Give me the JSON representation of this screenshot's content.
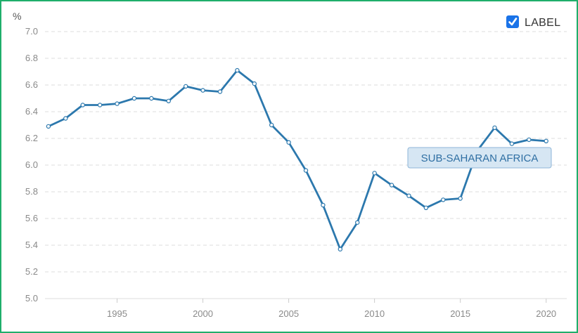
{
  "legend": {
    "checkbox_checked": true,
    "label": "LABEL"
  },
  "colors": {
    "line": "#2c78ad",
    "grid": "#dddddd",
    "frame": "#1fae6b",
    "checkbox": "#1a73e8",
    "series_label_bg": "#d6e6f3",
    "series_label_border": "#8fb6d8"
  },
  "chart_data": {
    "type": "line",
    "ylabel": "%",
    "xlabel": "",
    "title": "",
    "ylim": [
      5.0,
      7.0
    ],
    "xlim": [
      1990.8,
      2021.2
    ],
    "yticks": [
      "7.0",
      "6.8",
      "6.6",
      "6.4",
      "6.2",
      "6.0",
      "5.8",
      "5.6",
      "5.4",
      "5.2",
      "5.0"
    ],
    "xticks": [
      "1995",
      "2000",
      "2005",
      "2010",
      "2015",
      "2020"
    ],
    "grid": true,
    "legend_position": "top-right",
    "series": [
      {
        "name": "SUB-SAHARAN AFRICA",
        "x": [
          1991,
          1992,
          1993,
          1994,
          1995,
          1996,
          1997,
          1998,
          1999,
          2000,
          2001,
          2002,
          2003,
          2004,
          2005,
          2006,
          2007,
          2008,
          2009,
          2010,
          2011,
          2012,
          2013,
          2014,
          2015,
          2016,
          2017,
          2018,
          2019,
          2020
        ],
        "values": [
          6.29,
          6.35,
          6.45,
          6.45,
          6.46,
          6.5,
          6.5,
          6.48,
          6.59,
          6.56,
          6.55,
          6.71,
          6.61,
          6.3,
          6.17,
          5.96,
          5.7,
          5.37,
          5.57,
          5.94,
          5.85,
          5.77,
          5.68,
          5.74,
          5.75,
          6.11,
          6.28,
          6.16,
          6.19,
          6.18
        ]
      }
    ]
  }
}
